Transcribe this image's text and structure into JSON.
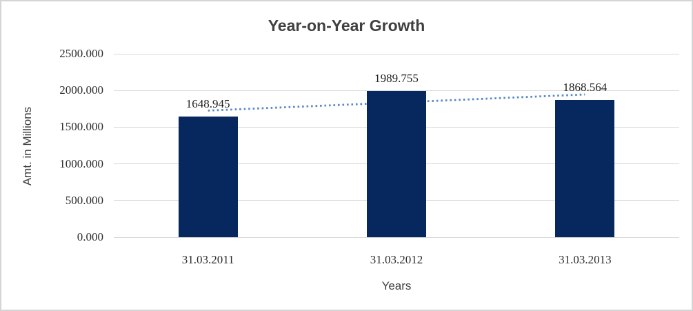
{
  "chart_data": {
    "type": "bar",
    "title": "Year-on-Year Growth",
    "categories": [
      "31.03.2011",
      "31.03.2012",
      "31.03.2013"
    ],
    "values": [
      1648.945,
      1989.755,
      1868.564
    ],
    "data_labels": [
      "1648.945",
      "1989.755",
      "1868.564"
    ],
    "xlabel": "Years",
    "ylabel": "Amt. in Millions",
    "ylim": [
      0,
      2500
    ],
    "y_tick_labels": [
      "0.000",
      "500.000",
      "1000.000",
      "1500.000",
      "2000.000",
      "2500.000"
    ],
    "grid": true,
    "legend": "none",
    "trendline": {
      "type": "linear",
      "style": "dotted"
    },
    "colors": {
      "bar": "#07275F",
      "trendline": "#5488C7",
      "gridline": "#D9D9D9",
      "title_text": "#404040",
      "axis_title_text": "#404040",
      "tick_text": "#2B2B2B",
      "data_label_text": "#1F1F1F",
      "border": "#D4D4D4",
      "background": "#FFFFFF"
    }
  }
}
